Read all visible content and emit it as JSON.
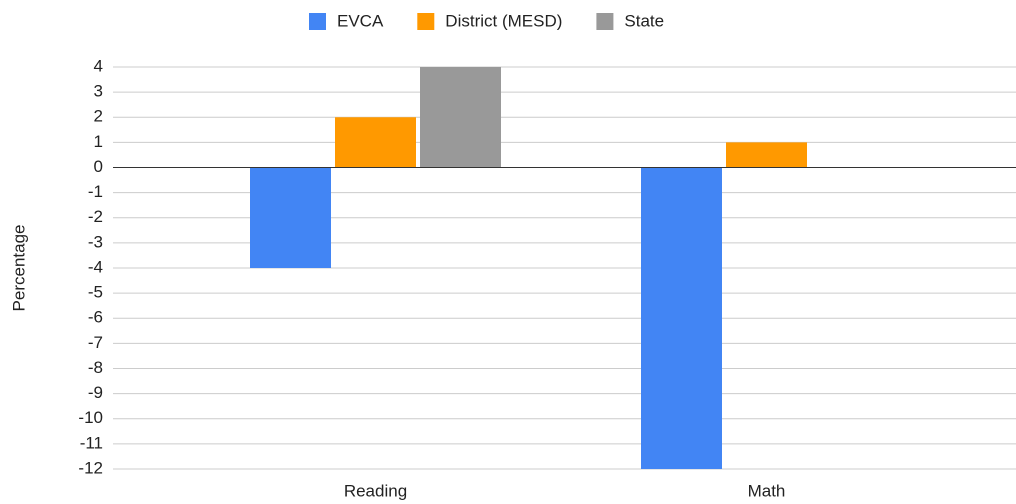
{
  "chart_data": {
    "type": "bar",
    "y_label": "Percentage",
    "categories": [
      "Reading",
      "Math"
    ],
    "series": [
      {
        "name": "EVCA",
        "color": "#4285f4",
        "values": [
          -4,
          -12
        ]
      },
      {
        "name": "District (MESD)",
        "color": "#ff9900",
        "values": [
          2,
          1
        ]
      },
      {
        "name": "State",
        "color": "#999999",
        "values": [
          4,
          0
        ]
      }
    ],
    "ylim": [
      -12,
      4
    ],
    "yticks": [
      -12,
      -11,
      -10,
      -9,
      -8,
      -7,
      -6,
      -5,
      -4,
      -3,
      -2,
      -1,
      0,
      1,
      2,
      3,
      4
    ],
    "grid": true,
    "legend": "top"
  }
}
